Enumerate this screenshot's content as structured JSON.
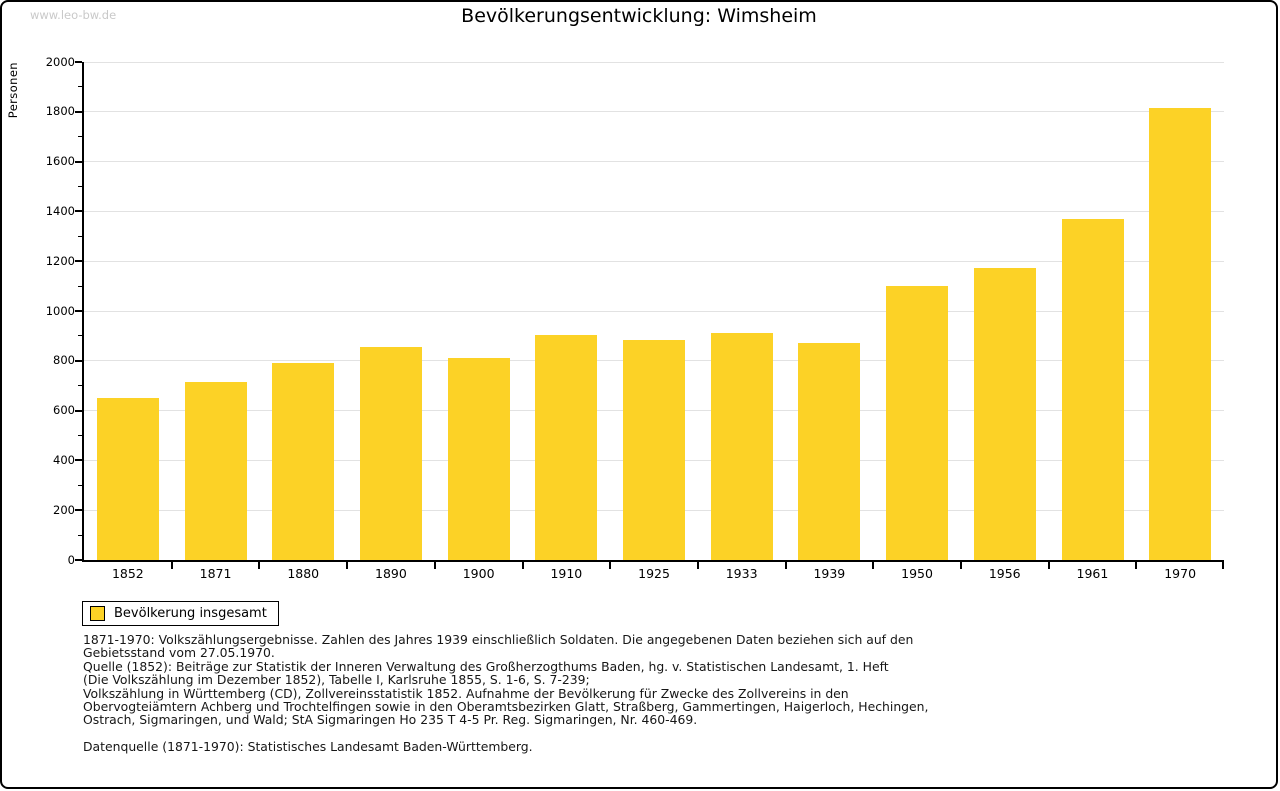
{
  "watermark": "www.leo-bw.de",
  "header": {
    "title": "Bevölkerungsentwicklung: Wimsheim"
  },
  "chart_data": {
    "type": "bar",
    "title": "Bevölkerungsentwicklung: Wimsheim",
    "categories": [
      "1852",
      "1871",
      "1880",
      "1890",
      "1900",
      "1910",
      "1925",
      "1933",
      "1939",
      "1950",
      "1956",
      "1961",
      "1970"
    ],
    "values": [
      650,
      715,
      790,
      855,
      810,
      905,
      885,
      910,
      870,
      1100,
      1172,
      1370,
      1815
    ],
    "series_name": "Bevölkerung insgesamt",
    "xlabel": "",
    "ylabel": "Personen",
    "ylim": [
      0,
      2000
    ],
    "yticks": [
      0,
      200,
      400,
      600,
      800,
      1000,
      1200,
      1400,
      1600,
      1800,
      2000
    ],
    "minor_tick_step": 100,
    "grid": true,
    "legend_position": "bottom-left",
    "bar_color": "#fcd226"
  },
  "legend": {
    "label": "Bevölkerung insgesamt",
    "swatch_color": "#fcd226"
  },
  "notes": {
    "lines": [
      "1871-1970: Volkszählungsergebnisse. Zahlen des Jahres 1939 einschließlich Soldaten. Die angegebenen Daten beziehen sich auf den",
      "Gebietsstand vom 27.05.1970.",
      "Quelle (1852): Beiträge zur Statistik der Inneren Verwaltung des Großherzogthums Baden, hg. v. Statistischen Landesamt, 1. Heft",
      "(Die Volkszählung im Dezember 1852), Tabelle I, Karlsruhe 1855, S. 1-6, S. 7-239;",
      "Volkszählung in Württemberg (CD), Zollvereinsstatistik 1852. Aufnahme der Bevölkerung für Zwecke des Zollvereins in den",
      "Obervogteiämtern Achberg und Trochtelfingen sowie in den Oberamtsbezirken Glatt, Straßberg, Gammertingen, Haigerloch, Hechingen,",
      "Ostrach, Sigmaringen, und Wald; StA Sigmaringen Ho 235 T 4-5 Pr. Reg. Sigmaringen, Nr. 460-469."
    ],
    "datasource": "Datenquelle (1871-1970): Statistisches Landesamt Baden-Württemberg."
  },
  "colors": {
    "bar": "#fcd226",
    "gridline": "#e2e2e2",
    "axis": "#000000",
    "watermark": "#c9c9c9",
    "page_border": "#000000"
  }
}
